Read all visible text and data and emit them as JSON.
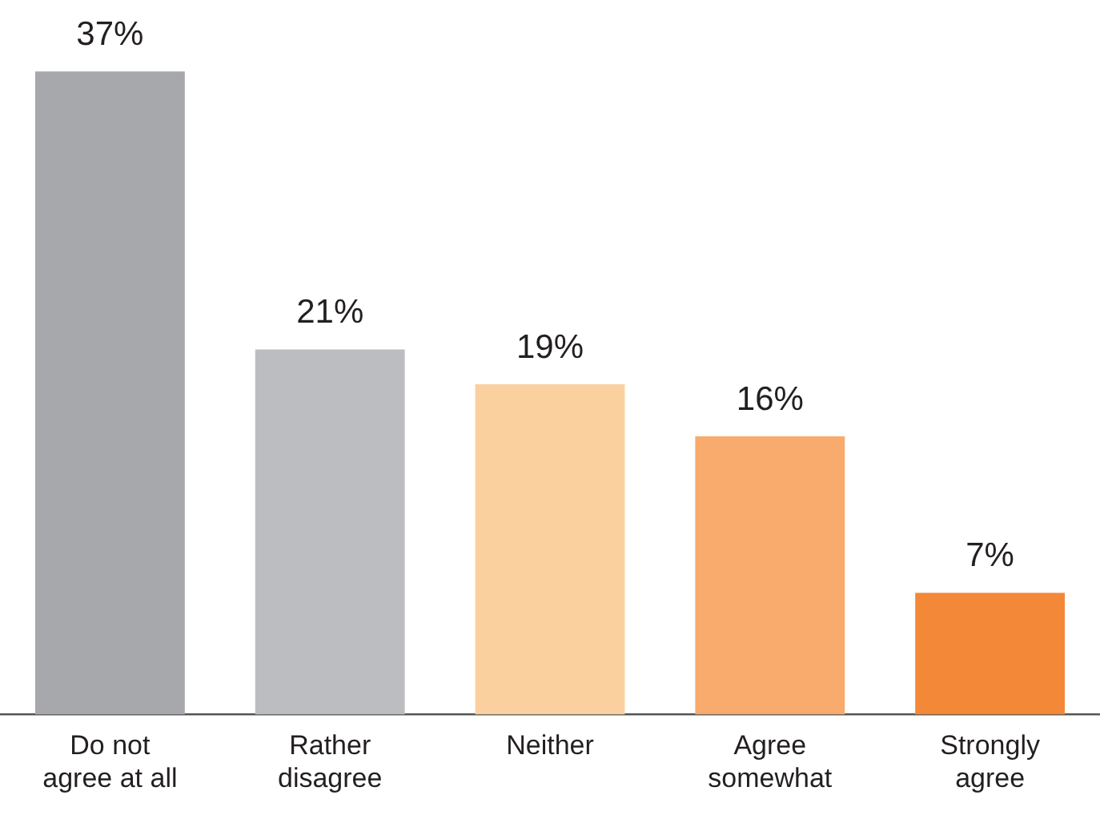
{
  "chart_data": {
    "type": "bar",
    "categories": [
      "Do not\nagree at all",
      "Rather\ndisagree",
      "Neither",
      "Agree\nsomewhat",
      "Strongly\nagree"
    ],
    "values": [
      37,
      21,
      19,
      16,
      7
    ],
    "value_labels": [
      "37%",
      "21%",
      "19%",
      "16%",
      "7%"
    ],
    "colors": [
      "#a7a8ab",
      "#bcbdc0",
      "#fbd09f",
      "#f8ab6c",
      "#f38839"
    ],
    "grid": false,
    "legend": false
  }
}
